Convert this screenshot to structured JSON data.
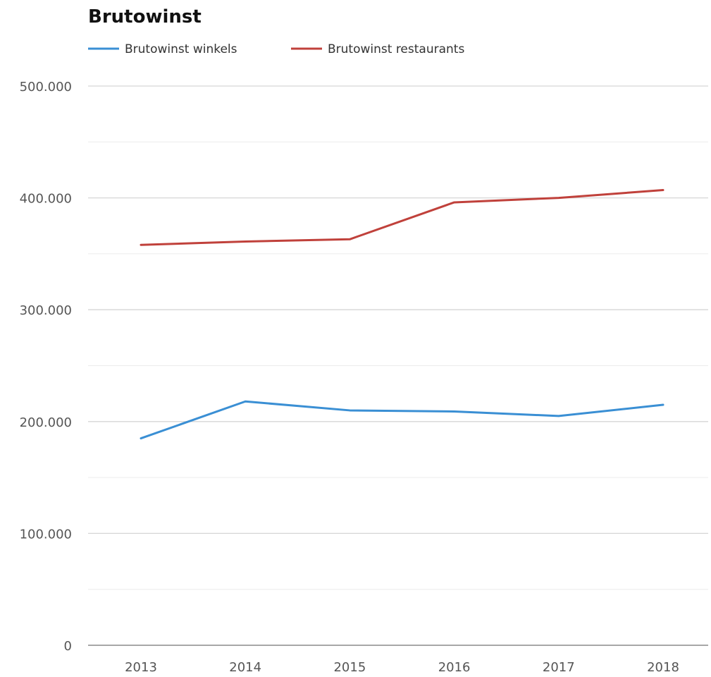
{
  "chart_data": {
    "type": "line",
    "title": "Brutowinst",
    "categories": [
      "2013",
      "2014",
      "2015",
      "2016",
      "2017",
      "2018"
    ],
    "series": [
      {
        "name": "Brutowinst winkels",
        "color": "#3a8fd4",
        "values": [
          185000,
          218000,
          210000,
          209000,
          205000,
          215000
        ]
      },
      {
        "name": "Brutowinst restaurants",
        "color": "#c0413b",
        "values": [
          358000,
          361000,
          363000,
          396000,
          400000,
          407000
        ]
      }
    ],
    "ylim": [
      0,
      500000
    ],
    "yticks": [
      0,
      100000,
      200000,
      300000,
      400000,
      500000
    ],
    "ytick_labels": [
      "0",
      "100.000",
      "200.000",
      "300.000",
      "400.000",
      "500.000"
    ],
    "grid": true,
    "legend_position": "top-left",
    "xlabel": "",
    "ylabel": ""
  }
}
